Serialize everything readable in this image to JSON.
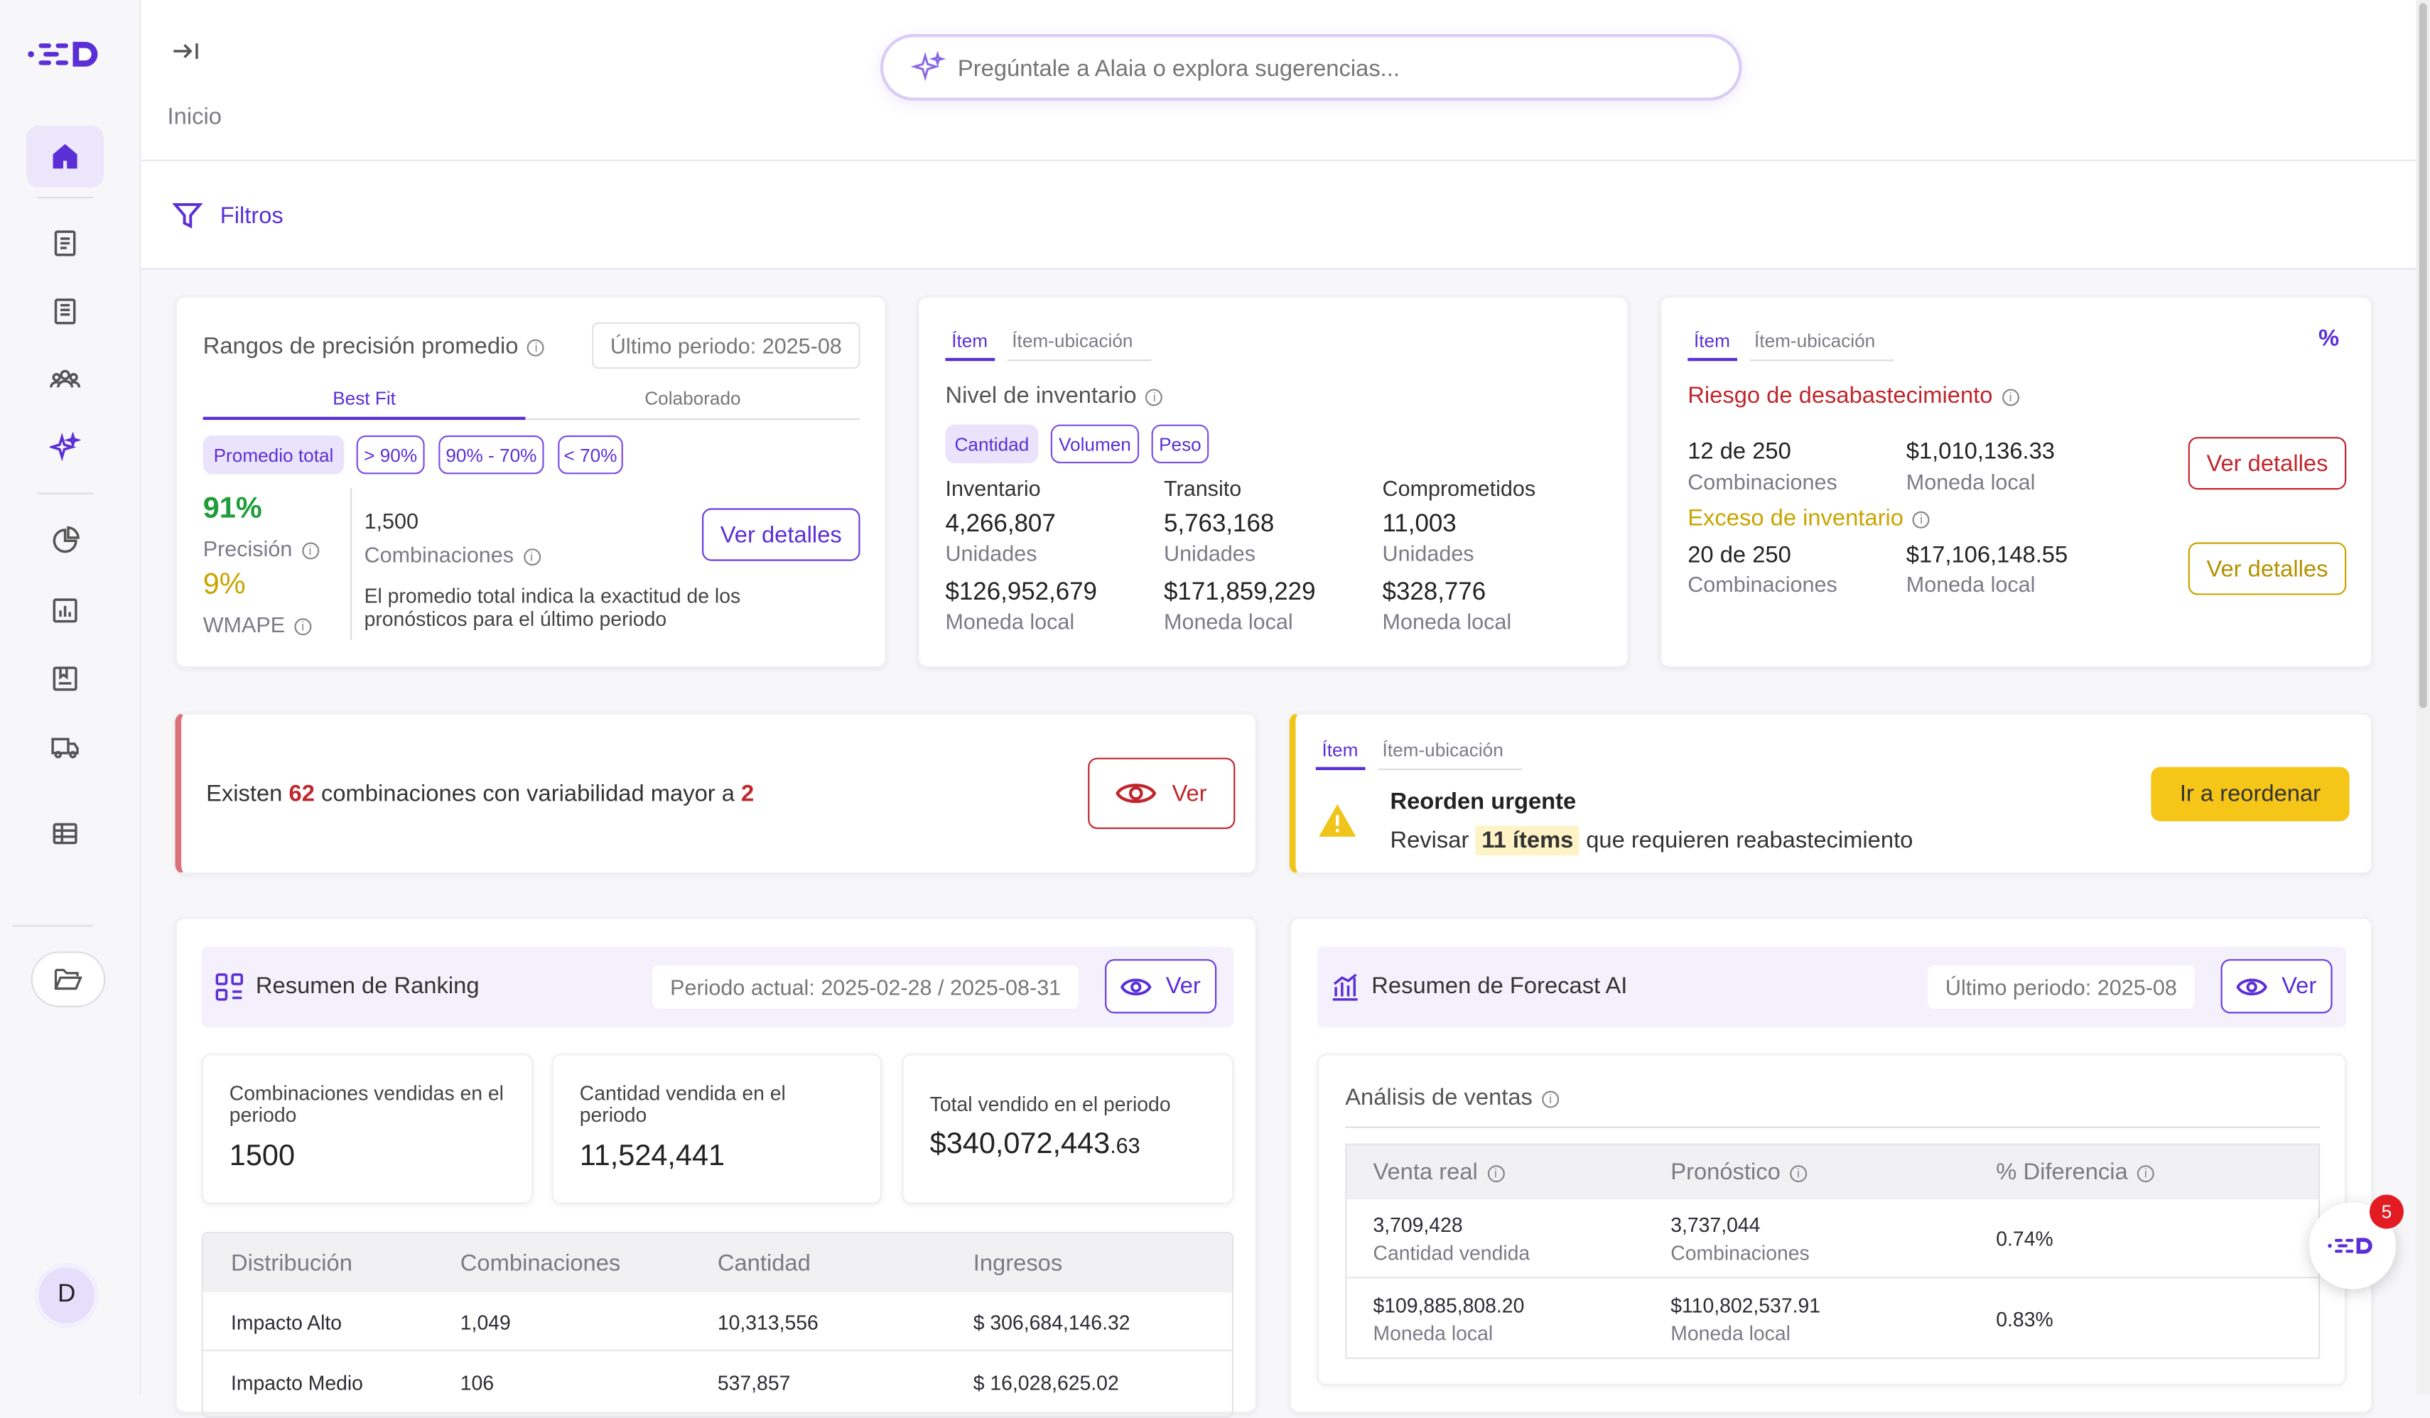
{
  "sidebar": {
    "items": [
      {
        "icon": "home-icon"
      },
      {
        "icon": "document-icon"
      },
      {
        "icon": "document-list-icon"
      },
      {
        "icon": "users-icon"
      },
      {
        "icon": "sparkles-icon"
      },
      {
        "icon": "pie-chart-icon"
      },
      {
        "icon": "bar-report-icon"
      },
      {
        "icon": "bookmark-box-icon"
      },
      {
        "icon": "truck-icon"
      },
      {
        "icon": "table-icon"
      }
    ],
    "folder_icon": "folder-open-icon",
    "avatar_letter": "D"
  },
  "header": {
    "collapse_icon": "collapse-arrow-icon",
    "breadcrumb": "Inicio",
    "search_placeholder": "Pregúntale a Alaia o explora sugerencias..."
  },
  "filters": {
    "label": "Filtros"
  },
  "precision_card": {
    "title": "Rangos de precisión promedio",
    "period": "Último periodo: 2025-08",
    "tabs": [
      "Best Fit",
      "Colaborado"
    ],
    "chips": [
      "Promedio total",
      "> 90%",
      "90% - 70%",
      "< 70%"
    ],
    "precision_value": "91%",
    "precision_label": "Precisión",
    "wmape_value": "9%",
    "wmape_label": "WMAPE",
    "combinations_value": "1,500",
    "combinations_label": "Combinaciones",
    "details_button": "Ver detalles",
    "description": "El promedio total indica la exactitud de los pronósticos para el último periodo"
  },
  "inventory_card": {
    "tabs": [
      "Ítem",
      "Ítem-ubicación"
    ],
    "title": "Nivel de inventario",
    "chips": [
      "Cantidad",
      "Volumen",
      "Peso"
    ],
    "columns": [
      {
        "label": "Inventario",
        "units": "4,266,807",
        "units_label": "Unidades",
        "money": "$126,952,679",
        "money_label": "Moneda local"
      },
      {
        "label": "Transito",
        "units": "5,763,168",
        "units_label": "Unidades",
        "money": "$171,859,229",
        "money_label": "Moneda local"
      },
      {
        "label": "Comprometidos",
        "units": "11,003",
        "units_label": "Unidades",
        "money": "$328,776",
        "money_label": "Moneda local"
      }
    ]
  },
  "risk_card": {
    "tabs": [
      "Ítem",
      "Ítem-ubicación"
    ],
    "percent_toggle": "%",
    "stockout_title": "Riesgo de desabastecimiento",
    "stockout_count": "12 de 250",
    "stockout_count_label": "Combinaciones",
    "stockout_money": "$1,010,136.33",
    "stockout_money_label": "Moneda local",
    "stockout_button": "Ver detalles",
    "excess_title": "Exceso de inventario",
    "excess_count": "20 de 250",
    "excess_count_label": "Combinaciones",
    "excess_money": "$17,106,148.55",
    "excess_money_label": "Moneda local",
    "excess_button": "Ver detalles"
  },
  "variability_alert": {
    "text_prefix": "Existen",
    "count": "62",
    "text_middle": "combinaciones con variabilidad mayor a",
    "threshold": "2",
    "button": "Ver"
  },
  "reorder_card": {
    "tabs": [
      "Ítem",
      "Ítem-ubicación"
    ],
    "title": "Reorden urgente",
    "text_prefix": "Revisar",
    "highlight": "11 ítems",
    "text_suffix": "que requieren reabastecimiento",
    "button": "Ir a reordenar"
  },
  "ranking_card": {
    "title": "Resumen de Ranking",
    "period": "Periodo actual: 2025-02-28 / 2025-08-31",
    "view_button": "Ver",
    "kpis": [
      {
        "label": "Combinaciones vendidas en el periodo",
        "value": "1500",
        "cents": ""
      },
      {
        "label": "Cantidad vendida en el periodo",
        "value": "11,524,441",
        "cents": ""
      },
      {
        "label": "Total vendido en el periodo",
        "value": "$340,072,443",
        "cents": ".63"
      }
    ],
    "table_headers": [
      "Distribución",
      "Combinaciones",
      "Cantidad",
      "Ingresos"
    ],
    "table_rows": [
      [
        "Impacto Alto",
        "1,049",
        "10,313,556",
        "$ 306,684,146.32"
      ],
      [
        "Impacto Medio",
        "106",
        "537,857",
        "$ 16,028,625.02"
      ]
    ]
  },
  "forecast_card": {
    "title": "Resumen de Forecast AI",
    "period": "Último periodo: 2025-08",
    "view_button": "Ver",
    "analysis_title": "Análisis de ventas",
    "table_headers": [
      "Venta real",
      "Pronóstico",
      "% Diferencia"
    ],
    "table_rows": [
      {
        "real": "3,709,428",
        "real_label": "Cantidad vendida",
        "forecast": "3,737,044",
        "forecast_label": "Combinaciones",
        "diff": "0.74%"
      },
      {
        "real": "$109,885,808.20",
        "real_label": "Moneda local",
        "forecast": "$110,802,537.91",
        "forecast_label": "Moneda local",
        "diff": "0.83%"
      }
    ]
  },
  "assistant_fab": {
    "badge": "5"
  },
  "colors": {
    "brand": "#5b2fd6",
    "danger": "#c0272d",
    "success": "#1f9d3a",
    "warning": "#c9a400",
    "warning_button": "#f5c518"
  }
}
